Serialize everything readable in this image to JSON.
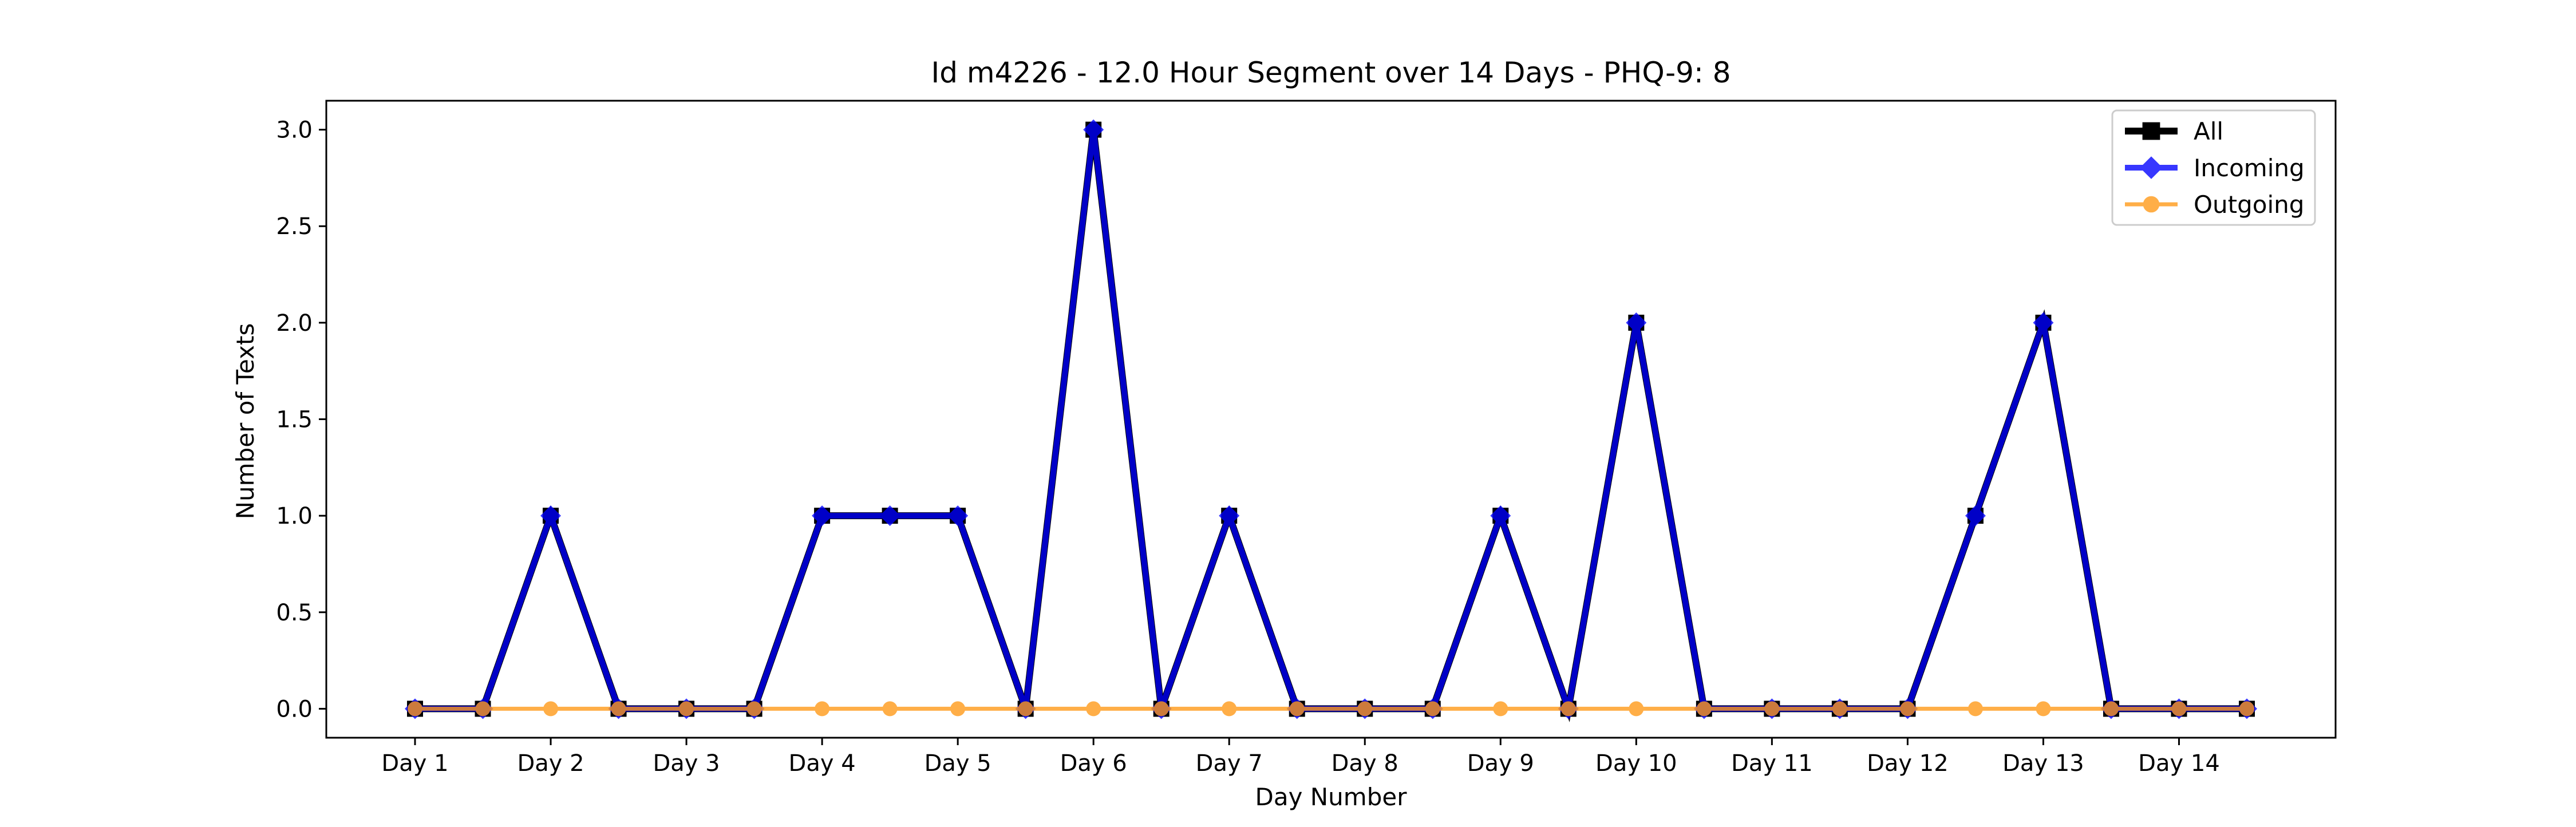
{
  "chart_data": {
    "type": "line",
    "title": "Id m4226 - 12.0 Hour Segment over 14 Days - PHQ-9: 8",
    "xlabel": "Day Number",
    "ylabel": "Number of Texts",
    "x_tick_labels": [
      "Day 1",
      "Day 2",
      "Day 3",
      "Day 4",
      "Day 5",
      "Day 6",
      "Day 7",
      "Day 8",
      "Day 9",
      "Day 10",
      "Day 11",
      "Day 12",
      "Day 13",
      "Day 14"
    ],
    "y_tick_labels": [
      "0.0",
      "0.5",
      "1.0",
      "1.5",
      "2.0",
      "2.5",
      "3.0"
    ],
    "y_ticks": [
      0,
      0.5,
      1.0,
      1.5,
      2.0,
      2.5,
      3.0
    ],
    "ylim": [
      -0.15,
      3.15
    ],
    "x_segments": 28,
    "grid": false,
    "legend_position": "top-right",
    "series": [
      {
        "name": "All",
        "color": "#000000",
        "marker": "square",
        "values": [
          0,
          0,
          1,
          0,
          0,
          0,
          1,
          1,
          1,
          0,
          3,
          0,
          1,
          0,
          0,
          0,
          1,
          0,
          2,
          0,
          0,
          0,
          0,
          1,
          2,
          0,
          0,
          0
        ]
      },
      {
        "name": "Incoming",
        "color": "#0000ff",
        "marker": "diamond",
        "values": [
          0,
          0,
          1,
          0,
          0,
          0,
          1,
          1,
          1,
          0,
          3,
          0,
          1,
          0,
          0,
          0,
          1,
          0,
          2,
          0,
          0,
          0,
          0,
          1,
          2,
          0,
          0,
          0
        ]
      },
      {
        "name": "Outgoing",
        "color": "#ff9a1a",
        "marker": "circle",
        "values": [
          0,
          0,
          0,
          0,
          0,
          0,
          0,
          0,
          0,
          0,
          0,
          0,
          0,
          0,
          0,
          0,
          0,
          0,
          0,
          0,
          0,
          0,
          0,
          0,
          0,
          0,
          0,
          0
        ]
      }
    ]
  }
}
